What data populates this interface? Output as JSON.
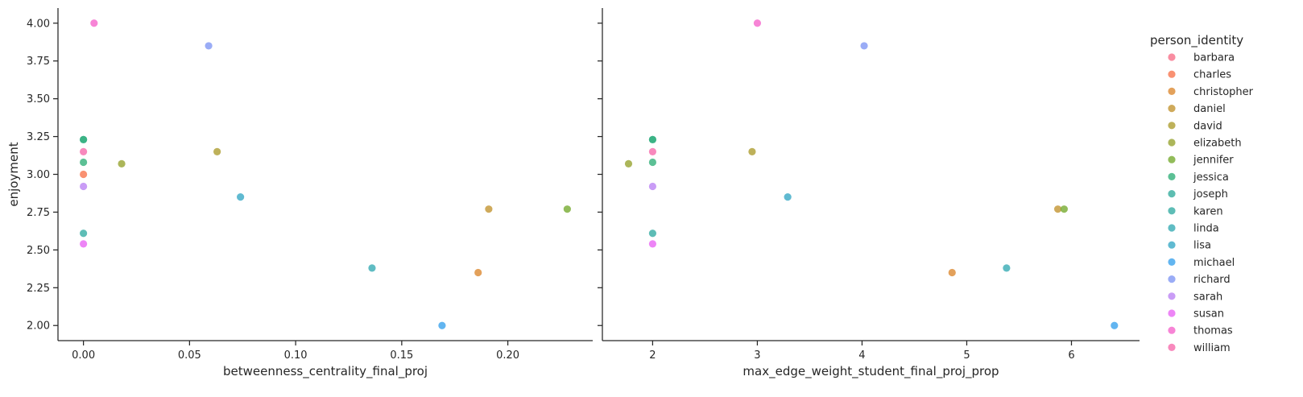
{
  "chart_data": [
    {
      "type": "scatter",
      "xlabel": "betweenness_centrality_final_proj",
      "ylabel": "enjoyment",
      "xlim": [
        -0.012,
        0.24
      ],
      "ylim": [
        1.9,
        4.1
      ],
      "xticks": [
        0.0,
        0.05,
        0.1,
        0.15,
        0.2
      ],
      "xtick_labels": [
        "0.00",
        "0.05",
        "0.10",
        "0.15",
        "0.20"
      ],
      "yticks": [
        2.0,
        2.25,
        2.5,
        2.75,
        3.0,
        3.25,
        3.5,
        3.75,
        4.0
      ],
      "ytick_labels": [
        "2.00",
        "2.25",
        "2.50",
        "2.75",
        "3.00",
        "3.25",
        "3.50",
        "3.75",
        "4.00"
      ],
      "grid": false,
      "points": [
        {
          "person": "thomas",
          "x": 0.005,
          "y": 4.0
        },
        {
          "person": "richard",
          "x": 0.059,
          "y": 3.85
        },
        {
          "person": "joseph",
          "x": 0.0,
          "y": 3.23
        },
        {
          "person": "jessica",
          "x": 0.0,
          "y": 3.23
        },
        {
          "person": "william",
          "x": 0.0,
          "y": 3.15
        },
        {
          "person": "david",
          "x": 0.063,
          "y": 3.15
        },
        {
          "person": "elizabeth",
          "x": 0.018,
          "y": 3.07
        },
        {
          "person": "jessica",
          "x": 0.0,
          "y": 3.08
        },
        {
          "person": "charles",
          "x": 0.0,
          "y": 3.0
        },
        {
          "person": "sarah",
          "x": 0.0,
          "y": 2.92
        },
        {
          "person": "lisa",
          "x": 0.074,
          "y": 2.85
        },
        {
          "person": "daniel",
          "x": 0.191,
          "y": 2.77
        },
        {
          "person": "jennifer",
          "x": 0.228,
          "y": 2.77
        },
        {
          "person": "karen",
          "x": 0.0,
          "y": 2.61
        },
        {
          "person": "susan",
          "x": 0.0,
          "y": 2.54
        },
        {
          "person": "linda",
          "x": 0.136,
          "y": 2.38
        },
        {
          "person": "christopher",
          "x": 0.186,
          "y": 2.35
        },
        {
          "person": "michael",
          "x": 0.169,
          "y": 2.0
        }
      ]
    },
    {
      "type": "scatter",
      "xlabel": "max_edge_weight_student_final_proj_prop",
      "ylabel": "",
      "xlim": [
        1.52,
        6.65
      ],
      "ylim": [
        1.9,
        4.1
      ],
      "xticks": [
        2,
        3,
        4,
        5,
        6
      ],
      "xtick_labels": [
        "2",
        "3",
        "4",
        "5",
        "6"
      ],
      "yticks": [
        2.0,
        2.25,
        2.5,
        2.75,
        3.0,
        3.25,
        3.5,
        3.75,
        4.0
      ],
      "grid": false,
      "points": [
        {
          "person": "thomas",
          "x": 3.0,
          "y": 4.0
        },
        {
          "person": "richard",
          "x": 4.02,
          "y": 3.85
        },
        {
          "person": "joseph",
          "x": 2.0,
          "y": 3.23
        },
        {
          "person": "jessica",
          "x": 2.0,
          "y": 3.23
        },
        {
          "person": "william",
          "x": 2.0,
          "y": 3.15
        },
        {
          "person": "david",
          "x": 2.95,
          "y": 3.15
        },
        {
          "person": "elizabeth",
          "x": 1.77,
          "y": 3.07
        },
        {
          "person": "jessica",
          "x": 2.0,
          "y": 3.08
        },
        {
          "person": "sarah",
          "x": 2.0,
          "y": 2.92
        },
        {
          "person": "lisa",
          "x": 3.29,
          "y": 2.85
        },
        {
          "person": "daniel",
          "x": 5.87,
          "y": 2.77
        },
        {
          "person": "jennifer",
          "x": 5.93,
          "y": 2.77
        },
        {
          "person": "karen",
          "x": 2.0,
          "y": 2.61
        },
        {
          "person": "susan",
          "x": 2.0,
          "y": 2.54
        },
        {
          "person": "linda",
          "x": 5.38,
          "y": 2.38
        },
        {
          "person": "christopher",
          "x": 4.86,
          "y": 2.35
        },
        {
          "person": "michael",
          "x": 6.41,
          "y": 2.0
        }
      ]
    }
  ],
  "legend": {
    "title": "person_identity",
    "placement": "right",
    "entries": [
      {
        "name": "barbara",
        "color": "#f77189"
      },
      {
        "name": "charles",
        "color": "#f7754f"
      },
      {
        "name": "christopher",
        "color": "#dc8932"
      },
      {
        "name": "daniel",
        "color": "#c39532"
      },
      {
        "name": "david",
        "color": "#ae9d31"
      },
      {
        "name": "elizabeth",
        "color": "#97a431"
      },
      {
        "name": "jennifer",
        "color": "#77ab31"
      },
      {
        "name": "jessica",
        "color": "#33b07a"
      },
      {
        "name": "joseph",
        "color": "#35ac9e"
      },
      {
        "name": "karen",
        "color": "#36ada4"
      },
      {
        "name": "linda",
        "color": "#37abb4"
      },
      {
        "name": "lisa",
        "color": "#38a9c5"
      },
      {
        "name": "michael",
        "color": "#3ba3ec"
      },
      {
        "name": "richard",
        "color": "#8197f4"
      },
      {
        "name": "sarah",
        "color": "#bb83f4"
      },
      {
        "name": "susan",
        "color": "#e866f4"
      },
      {
        "name": "thomas",
        "color": "#f565cc"
      },
      {
        "name": "william",
        "color": "#f66bad"
      }
    ]
  }
}
